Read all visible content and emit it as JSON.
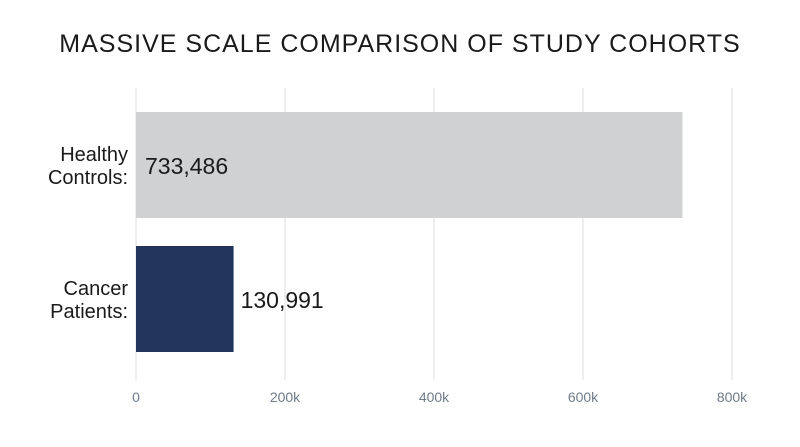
{
  "chart_data": {
    "type": "bar",
    "orientation": "horizontal",
    "title": "MASSIVE SCALE COMPARISON OF STUDY COHORTS",
    "categories": [
      [
        "Healthy",
        "Controls:"
      ],
      [
        "Cancer",
        "Patients:"
      ]
    ],
    "values": [
      733486,
      130991
    ],
    "value_labels": [
      "733,486",
      "130,991"
    ],
    "bar_colors": [
      "#cfd1d2",
      "#22345a"
    ],
    "value_label_position": [
      "inside",
      "outside"
    ],
    "xlim": [
      0,
      800000
    ],
    "xticks": [
      0,
      200000,
      400000,
      600000,
      800000
    ],
    "xtick_labels": [
      "0",
      "200k",
      "400k",
      "600k",
      "800k"
    ],
    "grid": true,
    "xlabel": "",
    "ylabel": ""
  }
}
